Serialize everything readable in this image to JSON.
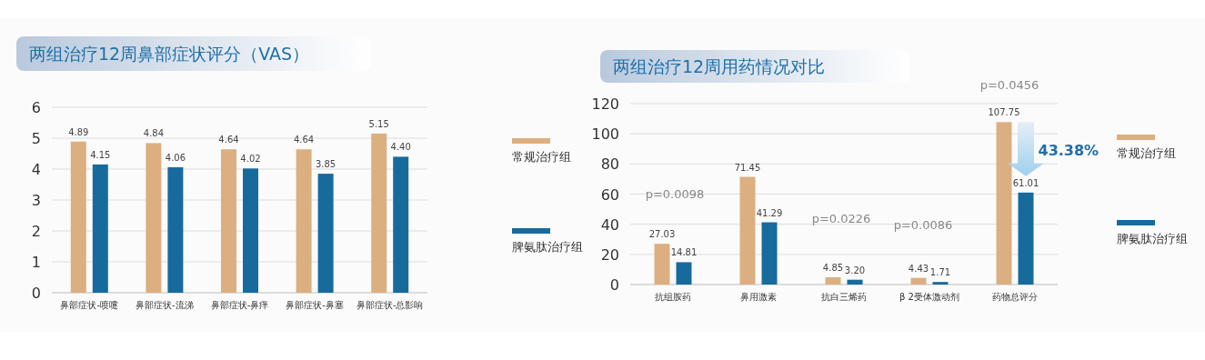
{
  "chart_data": [
    {
      "type": "bar",
      "title": "两组治疗12周鼻部症状评分（VAS）",
      "categories": [
        "鼻部症状-喷嚏",
        "鼻部症状-流涕",
        "鼻部症状-鼻痒",
        "鼻部症状-鼻塞",
        "鼻部症状-总影响"
      ],
      "series": [
        {
          "name": "常规治疗组",
          "color": "#dcaf80",
          "values": [
            4.89,
            4.84,
            4.64,
            4.64,
            5.15
          ],
          "value_labels": [
            "4.89",
            "4.84",
            "4.64",
            "4.64",
            "5.15"
          ]
        },
        {
          "name": "脾氨肽治疗组",
          "color": "#176b9c",
          "values": [
            4.15,
            4.06,
            4.02,
            3.85,
            4.4
          ],
          "value_labels": [
            "4.15",
            "4.06",
            "4.02",
            "3.85",
            "4.40"
          ]
        }
      ],
      "ylim": [
        0,
        6
      ],
      "yticks": [
        0,
        1,
        2,
        3,
        4,
        5,
        6
      ],
      "grid": "y",
      "legend": "right"
    },
    {
      "type": "bar",
      "title": "两组治疗12周用药情况对比",
      "categories": [
        "抗组胺药",
        "鼻用激素",
        "抗白三烯药",
        "β 2受体激动剂",
        "药物总评分"
      ],
      "series": [
        {
          "name": "常规治疗组",
          "color": "#dcaf80",
          "values": [
            27.03,
            71.45,
            4.85,
            4.43,
            107.75
          ],
          "value_labels": [
            "27.03",
            "71.45",
            "4.85",
            "4.43",
            "107.75"
          ]
        },
        {
          "name": "脾氨肽治疗组",
          "color": "#176b9c",
          "values": [
            14.81,
            41.29,
            3.2,
            1.71,
            61.01
          ],
          "value_labels": [
            "14.81",
            "41.29",
            "3.20",
            "1.71",
            "61.01"
          ]
        }
      ],
      "ylim": [
        0,
        120
      ],
      "yticks": [
        0,
        20,
        40,
        60,
        80,
        100,
        120
      ],
      "grid": "y",
      "legend": "right",
      "annotations": [
        "p=0.0098",
        "p=0.0226",
        "p=0.0086",
        "p=0.0456",
        {
          "text": "43.38%",
          "x": "药物总评分",
          "y": 90
        }
      ]
    }
  ]
}
